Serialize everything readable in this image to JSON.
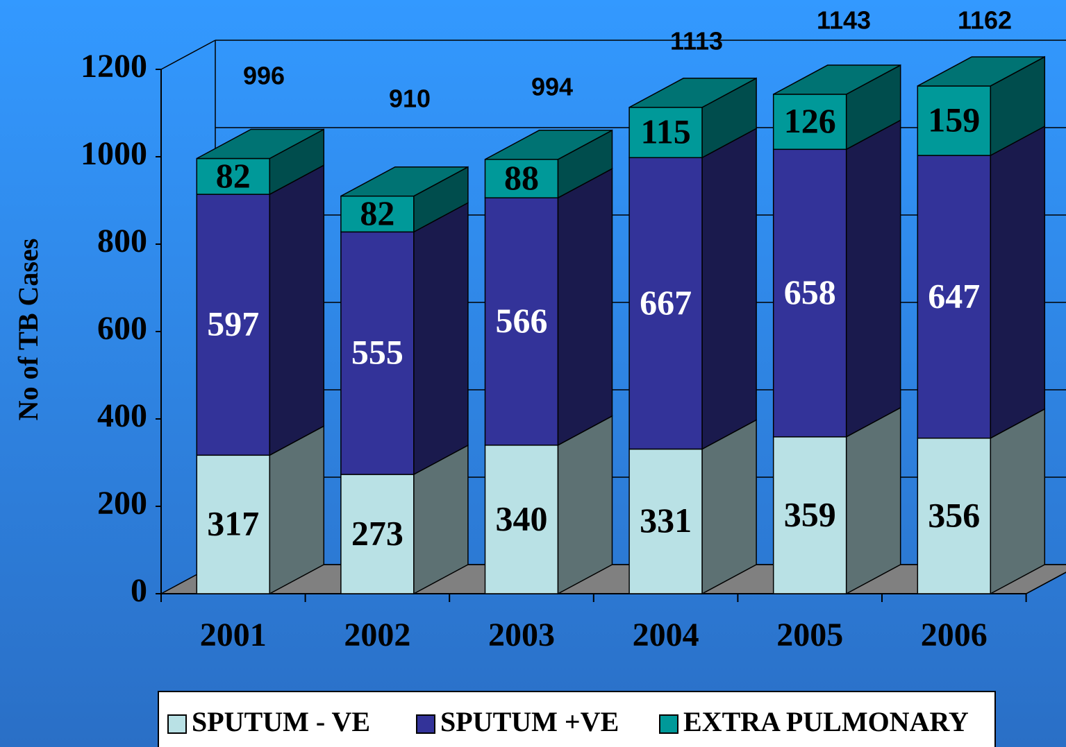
{
  "chart_data": {
    "type": "bar3d-stacked",
    "y_label": "No of TB Cases",
    "categories": [
      "2001",
      "2002",
      "2003",
      "2004",
      "2005",
      "2006"
    ],
    "series": [
      {
        "name": "SPUTUM - VE",
        "color": "#b9e1e5",
        "values": [
          317,
          273,
          340,
          331,
          359,
          356
        ]
      },
      {
        "name": "SPUTUM +VE",
        "color": "#333399",
        "values": [
          597,
          555,
          566,
          667,
          658,
          647
        ]
      },
      {
        "name": "EXTRA PULMONARY",
        "color": "#009999",
        "values": [
          82,
          82,
          88,
          115,
          126,
          159
        ]
      }
    ],
    "totals": [
      996,
      910,
      994,
      1113,
      1143,
      1162
    ],
    "ylim": [
      0,
      1200
    ],
    "yticks": [
      0,
      200,
      400,
      600,
      800,
      1000,
      1200
    ],
    "grid": true,
    "legend": "bottom"
  }
}
